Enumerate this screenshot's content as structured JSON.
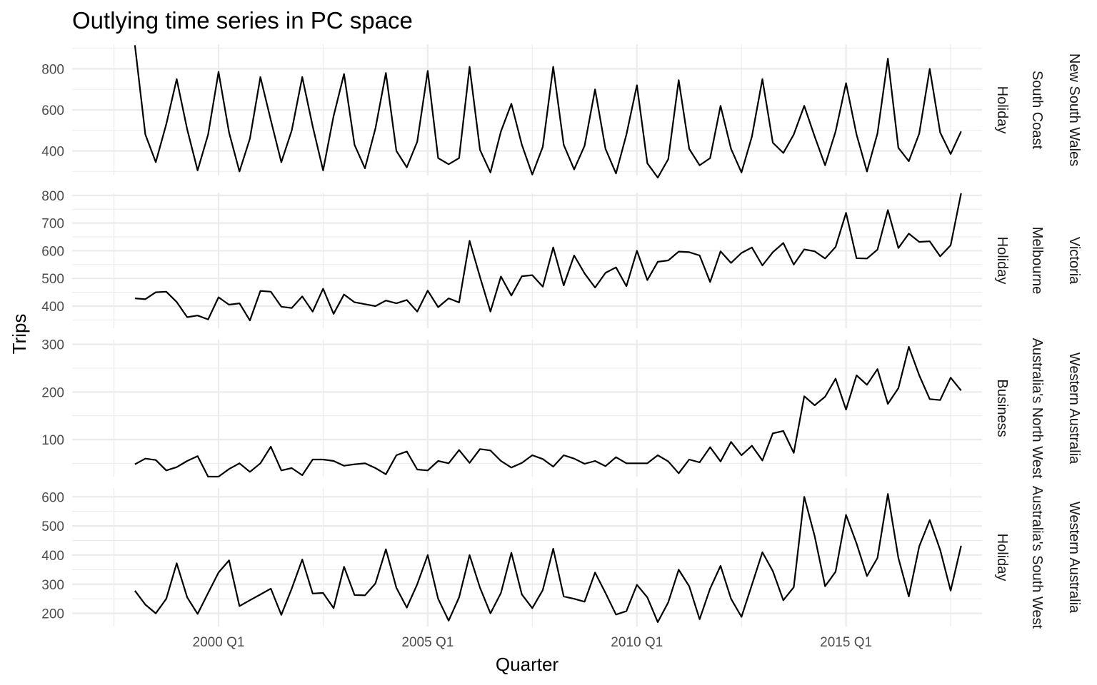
{
  "chart_data": {
    "type": "line",
    "title": "Outlying time series in PC space",
    "xlabel": "Quarter",
    "ylabel": "Trips",
    "x_start": "1998 Q1",
    "x_ticks": [
      "2000 Q1",
      "2005 Q1",
      "2010 Q1",
      "2015 Q1"
    ],
    "grid": true,
    "panels": [
      {
        "strips": [
          "Holiday",
          "South Coast",
          "New South Wales"
        ],
        "ylim": [
          280,
          920
        ],
        "y_ticks": [
          400,
          600,
          800
        ],
        "values": [
          915,
          480,
          345,
          530,
          750,
          505,
          305,
          480,
          785,
          490,
          300,
          460,
          760,
          550,
          345,
          500,
          760,
          520,
          305,
          570,
          775,
          430,
          315,
          510,
          780,
          400,
          320,
          445,
          790,
          365,
          335,
          365,
          810,
          405,
          295,
          495,
          630,
          430,
          285,
          420,
          810,
          430,
          310,
          425,
          700,
          410,
          290,
          480,
          720,
          340,
          270,
          360,
          745,
          410,
          330,
          365,
          620,
          410,
          295,
          470,
          750,
          440,
          390,
          480,
          620,
          470,
          330,
          495,
          730,
          480,
          300,
          485,
          850,
          415,
          350,
          485,
          800,
          490,
          385,
          495
        ]
      },
      {
        "strips": [
          "Holiday",
          "Melbourne",
          "Victoria"
        ],
        "ylim": [
          320,
          810
        ],
        "y_ticks": [
          400,
          500,
          600,
          700,
          800
        ],
        "values": [
          428,
          425,
          450,
          452,
          415,
          360,
          366,
          352,
          432,
          405,
          410,
          348,
          455,
          452,
          398,
          393,
          435,
          380,
          463,
          372,
          442,
          414,
          407,
          400,
          420,
          410,
          422,
          380,
          456,
          396,
          428,
          413,
          636,
          505,
          380,
          507,
          438,
          508,
          512,
          470,
          612,
          475,
          583,
          518,
          467,
          520,
          540,
          472,
          600,
          494,
          560,
          565,
          597,
          595,
          583,
          487,
          598,
          556,
          592,
          612,
          547,
          595,
          628,
          550,
          605,
          598,
          572,
          614,
          737,
          573,
          572,
          604,
          747,
          610,
          662,
          632,
          634,
          580,
          620,
          808
        ]
      },
      {
        "strips": [
          "Business",
          "Australia's North West",
          "Western Australia"
        ],
        "ylim": [
          22,
          310
        ],
        "y_ticks": [
          100,
          200,
          300
        ],
        "values": [
          48,
          60,
          57,
          35,
          42,
          55,
          65,
          22,
          22,
          38,
          50,
          32,
          50,
          85,
          35,
          40,
          25,
          58,
          58,
          55,
          45,
          48,
          50,
          40,
          27,
          67,
          75,
          37,
          35,
          55,
          50,
          78,
          51,
          80,
          77,
          55,
          41,
          51,
          67,
          59,
          43,
          67,
          60,
          49,
          55,
          44,
          63,
          50,
          50,
          50,
          67,
          54,
          29,
          58,
          52,
          84,
          54,
          95,
          67,
          87,
          56,
          113,
          118,
          72,
          191,
          172,
          190,
          228,
          163,
          235,
          215,
          248,
          175,
          208,
          295,
          235,
          185,
          183,
          230,
          203
        ]
      },
      {
        "strips": [
          "Holiday",
          "Australia's South West",
          "Western Australia"
        ],
        "ylim": [
          155,
          630
        ],
        "y_ticks": [
          200,
          300,
          400,
          500,
          600
        ],
        "values": [
          278,
          230,
          200,
          250,
          372,
          255,
          198,
          270,
          340,
          382,
          225,
          245,
          265,
          285,
          195,
          285,
          385,
          268,
          270,
          218,
          360,
          263,
          262,
          303,
          420,
          288,
          220,
          300,
          400,
          250,
          175,
          255,
          400,
          288,
          200,
          270,
          408,
          265,
          218,
          280,
          422,
          258,
          250,
          240,
          340,
          270,
          196,
          208,
          298,
          255,
          170,
          238,
          350,
          293,
          180,
          285,
          363,
          250,
          188,
          298,
          410,
          345,
          245,
          290,
          600,
          465,
          293,
          343,
          538,
          440,
          328,
          390,
          610,
          390,
          258,
          430,
          520,
          418,
          278,
          432
        ]
      }
    ]
  }
}
